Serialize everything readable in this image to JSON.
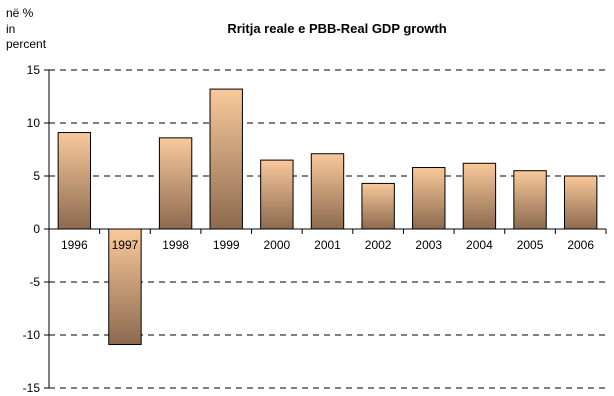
{
  "chart_data": {
    "type": "bar",
    "title": "Rritja reale e PBB-Real GDP growth",
    "unit_label_lines": [
      "në %",
      "in",
      "percent"
    ],
    "categories": [
      "1996",
      "1997",
      "1998",
      "1999",
      "2000",
      "2001",
      "2002",
      "2003",
      "2004",
      "2005",
      "2006"
    ],
    "values": [
      9.1,
      -10.9,
      8.6,
      13.2,
      6.5,
      7.1,
      4.3,
      5.8,
      6.2,
      5.5,
      5.0
    ],
    "ylim": [
      -15,
      15
    ],
    "yticks": [
      15,
      10,
      5,
      0,
      -5,
      -10,
      -15
    ],
    "grid": "horizontal dashed",
    "legend": "none",
    "colors": {
      "bar_top": "#F9C99B",
      "bar_bottom": "#8C6A4F",
      "bar_outline": "#000000",
      "grid": "#000000"
    }
  }
}
